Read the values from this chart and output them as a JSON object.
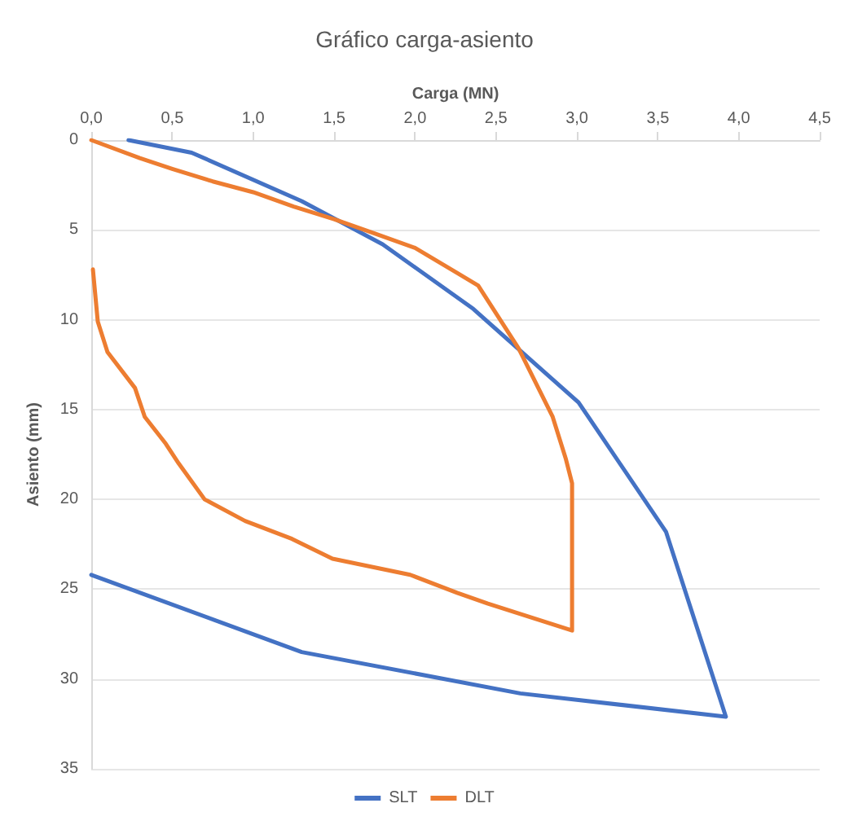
{
  "chart_data": {
    "type": "line",
    "title": "Gráfico carga-asiento",
    "xlabel": "Carga (MN)",
    "ylabel": "Asiento (mm)",
    "xlim": [
      0,
      4.5
    ],
    "xticks": [
      {
        "value": 0,
        "label": "0,0"
      },
      {
        "value": 0.5,
        "label": "0,5"
      },
      {
        "value": 1,
        "label": "1,0"
      },
      {
        "value": 1.5,
        "label": "1,5"
      },
      {
        "value": 2,
        "label": "2,0"
      },
      {
        "value": 2.5,
        "label": "2,5"
      },
      {
        "value": 3,
        "label": "3,0"
      },
      {
        "value": 3.5,
        "label": "3,5"
      },
      {
        "value": 4,
        "label": "4,0"
      },
      {
        "value": 4.5,
        "label": "4,5"
      }
    ],
    "ylim": [
      35,
      0
    ],
    "yticks": [
      0,
      5,
      10,
      15,
      20,
      25,
      30,
      35
    ],
    "grid": "y",
    "legend": "bottom",
    "marker": "none",
    "line_style": "solid",
    "series": [
      {
        "name": "SLT",
        "color": "#4472c4",
        "x": [
          0.23,
          0.62,
          1.3,
          1.8,
          2.36,
          3.01,
          3.55,
          3.92,
          2.65,
          1.3,
          0
        ],
        "values": [
          0,
          0.7,
          3.4,
          5.8,
          9.4,
          14.6,
          21.8,
          32.1,
          30.8,
          28.5,
          24.2
        ]
      },
      {
        "name": "DLT",
        "color": "#ed7d31",
        "x": [
          0,
          0.3,
          0.5,
          0.75,
          1.0,
          1.25,
          1.5,
          1.75,
          2.0,
          2.26,
          2.39,
          2.64,
          2.85,
          2.93,
          2.97,
          2.97,
          2.97,
          2.45,
          2.26,
          1.97,
          1.49,
          1.24,
          0.95,
          0.7,
          0.54,
          0.46,
          0.33,
          0.27,
          0.1,
          0.04,
          0.01
        ],
        "values": [
          0,
          1.0,
          1.6,
          2.3,
          2.9,
          3.7,
          4.4,
          5.2,
          6.0,
          7.4,
          8.1,
          11.6,
          15.4,
          17.7,
          19.1,
          20.0,
          27.3,
          25.8,
          25.2,
          24.2,
          23.3,
          22.2,
          21.2,
          20.0,
          18.0,
          16.9,
          15.4,
          13.8,
          11.8,
          10.1,
          7.2
        ]
      }
    ]
  }
}
